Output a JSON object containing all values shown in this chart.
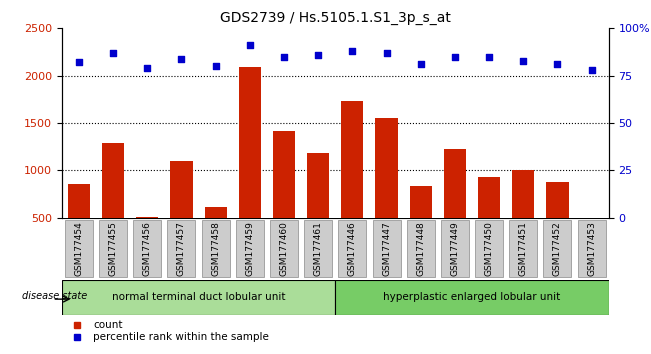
{
  "title": "GDS2739 / Hs.5105.1.S1_3p_s_at",
  "samples": [
    "GSM177454",
    "GSM177455",
    "GSM177456",
    "GSM177457",
    "GSM177458",
    "GSM177459",
    "GSM177460",
    "GSM177461",
    "GSM177446",
    "GSM177447",
    "GSM177448",
    "GSM177449",
    "GSM177450",
    "GSM177451",
    "GSM177452",
    "GSM177453"
  ],
  "counts": [
    860,
    1290,
    510,
    1100,
    610,
    2090,
    1420,
    1180,
    1730,
    1555,
    840,
    1230,
    930,
    1000,
    880,
    480
  ],
  "percentiles": [
    82,
    87,
    79,
    84,
    80,
    91,
    85,
    86,
    88,
    87,
    81,
    85,
    85,
    83,
    81,
    78
  ],
  "group1_label": "normal terminal duct lobular unit",
  "group2_label": "hyperplastic enlarged lobular unit",
  "group1_count": 8,
  "group2_count": 8,
  "disease_state_label": "disease state",
  "bar_color": "#cc2200",
  "dot_color": "#0000cc",
  "ylim_left": [
    500,
    2500
  ],
  "ylim_right": [
    0,
    100
  ],
  "yticks_left": [
    500,
    1000,
    1500,
    2000,
    2500
  ],
  "yticks_right": [
    0,
    25,
    50,
    75,
    100
  ],
  "grid_lines": [
    1000,
    1500,
    2000
  ],
  "group1_color": "#aadd99",
  "group2_color": "#77cc66",
  "tick_label_fontsize": 6.5,
  "title_fontsize": 10,
  "legend_count_label": "count",
  "legend_pct_label": "percentile rank within the sample",
  "bar_width": 0.65,
  "tickbox_color": "#cccccc",
  "tickbox_edge": "#999999"
}
